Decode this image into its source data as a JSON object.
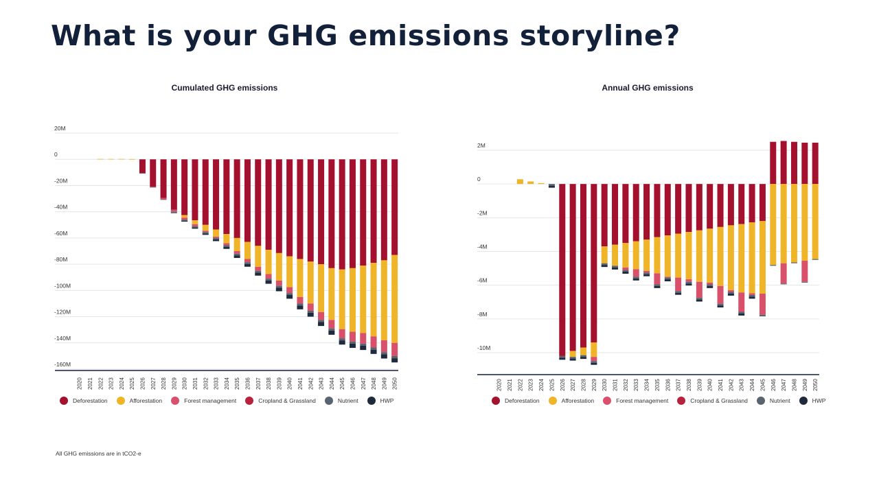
{
  "page": {
    "title": "What is your GHG emissions storyline?",
    "footnote": "All GHG emissions are in tCO2-e"
  },
  "colors": {
    "Deforestation": "#a3112e",
    "Afforestation": "#f0b429",
    "Forest management": "#d9506a",
    "Cropland & Grassland": "#b7223d",
    "Nutrient": "#5a6470",
    "HWP": "#1f2a3c"
  },
  "legend": [
    {
      "label": "Deforestation",
      "color": "#a3112e"
    },
    {
      "label": "Afforestation",
      "color": "#f0b429"
    },
    {
      "label": "Forest management",
      "color": "#d9506a"
    },
    {
      "label": "Cropland & Grassland",
      "color": "#b7223d"
    },
    {
      "label": "Nutrient",
      "color": "#5a6470"
    },
    {
      "label": "HWP",
      "color": "#1f2a3c"
    }
  ],
  "chart_data": [
    {
      "type": "bar",
      "stacked": true,
      "title": "Cumulated GHG emissions",
      "xlabel": "",
      "ylabel": "",
      "ylim": [
        -160000000,
        20000000
      ],
      "yticks": [
        20000000,
        0,
        -20000000,
        -40000000,
        -60000000,
        -80000000,
        -100000000,
        -120000000,
        -140000000,
        -160000000
      ],
      "ytick_labels": [
        "20M",
        "0",
        "-20M",
        "-40M",
        "-60M",
        "-80M",
        "-100M",
        "-120M",
        "-140M",
        "-160M"
      ],
      "grid": true,
      "legend_position": "bottom",
      "categories": [
        "2020",
        "2021",
        "2022",
        "2023",
        "2024",
        "2025",
        "2026",
        "2027",
        "2028",
        "2029",
        "2030",
        "2031",
        "2032",
        "2033",
        "2034",
        "2035",
        "2036",
        "2037",
        "2038",
        "2039",
        "2040",
        "2041",
        "2042",
        "2043",
        "2044",
        "2045",
        "2046",
        "2047",
        "2048",
        "2049",
        "2050"
      ],
      "series": [
        {
          "name": "Deforestation",
          "values": [
            0,
            0,
            0,
            0,
            0,
            0,
            -10.5,
            -20.8,
            -29.5,
            -38.5,
            -42.5,
            -46.5,
            -50,
            -53.5,
            -57,
            -60,
            -63,
            -66,
            -69,
            -71.5,
            -74,
            -76,
            -78,
            -80,
            -83,
            -84,
            -83,
            -81,
            -79,
            -77,
            -73
          ]
        },
        {
          "name": "Afforestation",
          "values": [
            0,
            0,
            0.3,
            0.3,
            0.3,
            0.2,
            0,
            0,
            0,
            0,
            -2,
            -3,
            -4.5,
            -5.5,
            -7,
            -10,
            -13,
            -16,
            -18.5,
            -21,
            -23.5,
            -29,
            -32,
            -36.5,
            -39.5,
            -45.5,
            -48.5,
            -51.5,
            -56,
            -61,
            -67
          ]
        },
        {
          "name": "Forest management",
          "values": [
            0,
            0,
            0,
            0,
            0,
            0,
            0,
            -0.3,
            -1,
            -1.5,
            -1.5,
            -1.5,
            -1,
            -1,
            -1.5,
            -2,
            -2.5,
            -3,
            -3.5,
            -4,
            -4.5,
            -5,
            -5.5,
            -6,
            -6.5,
            -7,
            -7.5,
            -8,
            -8.5,
            -9,
            -10
          ]
        },
        {
          "name": "Cropland & Grassland",
          "values": [
            0,
            0,
            0,
            0,
            0,
            0,
            0,
            0,
            0,
            0,
            0,
            0,
            0,
            0,
            0,
            0,
            0,
            0,
            0,
            0,
            0,
            0,
            0,
            0,
            0,
            0,
            0,
            0,
            0,
            0,
            0
          ]
        },
        {
          "name": "Nutrient",
          "values": [
            0,
            0,
            0,
            0,
            0,
            0,
            -0.2,
            -0.2,
            -0.4,
            -0.6,
            -0.8,
            -1,
            -1,
            -1,
            -1.2,
            -1.4,
            -1.4,
            -1.5,
            -1.5,
            -1.5,
            -1.5,
            -1.5,
            -1.5,
            -1.5,
            -1.6,
            -1.6,
            -1.6,
            -1.7,
            -1.7,
            -1.7,
            -1.7
          ]
        },
        {
          "name": "HWP",
          "values": [
            0,
            0,
            0,
            0,
            0,
            0,
            0,
            0,
            0,
            -0.4,
            -0.7,
            -0.9,
            -1.1,
            -1.4,
            -1.6,
            -1.8,
            -2,
            -2.2,
            -2.4,
            -2.6,
            -2.8,
            -2.9,
            -3,
            -3.1,
            -3.2,
            -3.2,
            -3.2,
            -3.2,
            -3.2,
            -3.2,
            -3.2
          ]
        }
      ],
      "unit_multiplier": 1000000
    },
    {
      "type": "bar",
      "stacked": true,
      "title": "Annual GHG emissions",
      "xlabel": "",
      "ylabel": "",
      "ylim": [
        -11000000,
        2500000
      ],
      "yticks": [
        2000000,
        0,
        -2000000,
        -4000000,
        -6000000,
        -8000000,
        -10000000
      ],
      "ytick_labels": [
        "2M",
        "0",
        "-2M",
        "-4M",
        "-6M",
        "-8M",
        "-10M"
      ],
      "grid": true,
      "legend_position": "bottom",
      "categories": [
        "2020",
        "2021",
        "2022",
        "2023",
        "2024",
        "2025",
        "2026",
        "2027",
        "2028",
        "2029",
        "2030",
        "2031",
        "2032",
        "2033",
        "2034",
        "2035",
        "2036",
        "2037",
        "2038",
        "2039",
        "2040",
        "2041",
        "2042",
        "2043",
        "2044",
        "2045",
        "2046",
        "2047",
        "2048",
        "2049",
        "2050"
      ],
      "series": [
        {
          "name": "Deforestation",
          "values": [
            0,
            0,
            0,
            0,
            0,
            0,
            -10.2,
            -9.9,
            -9.7,
            -9.4,
            -3.7,
            -3.6,
            -3.5,
            -3.4,
            -3.3,
            -3.15,
            -3.05,
            -2.95,
            -2.85,
            -2.75,
            -2.65,
            -2.55,
            -2.45,
            -2.38,
            -2.28,
            -2.2,
            2.5,
            2.55,
            2.5,
            2.45,
            2.45
          ]
        },
        {
          "name": "Afforestation",
          "values": [
            0,
            0,
            0.28,
            0.15,
            0.05,
            0,
            0,
            -0.35,
            -0.45,
            -0.85,
            -1,
            -1.25,
            -1.45,
            -1.65,
            -1.85,
            -2.15,
            -2.45,
            -2.6,
            -2.8,
            -3.05,
            -3.2,
            -3.5,
            -3.85,
            -4.05,
            -4.2,
            -4.3,
            -4.8,
            -4.7,
            -4.65,
            -4.55,
            -4.45
          ]
        },
        {
          "name": "Forest management",
          "values": [
            0,
            0,
            0,
            0,
            0,
            0,
            0,
            0,
            0,
            -0.25,
            0,
            0,
            -0.15,
            -0.45,
            -0.1,
            -0.65,
            -0.05,
            -0.8,
            -0.15,
            -0.95,
            -0.1,
            -1.05,
            -0.1,
            -1.15,
            -0.1,
            -1.25,
            0,
            -1.2,
            0,
            -1.25,
            0
          ]
        },
        {
          "name": "Cropland & Grassland",
          "values": [
            0,
            0,
            0,
            0,
            0,
            0,
            0,
            0,
            0,
            0,
            0,
            0,
            0,
            0,
            0,
            0,
            0,
            0,
            0,
            0,
            0,
            0,
            0,
            0,
            0,
            0,
            0,
            0,
            0,
            0,
            0
          ]
        },
        {
          "name": "Nutrient",
          "values": [
            0,
            0,
            0,
            0,
            0,
            -0.1,
            -0.1,
            -0.1,
            -0.1,
            -0.1,
            -0.1,
            -0.1,
            -0.1,
            -0.1,
            -0.1,
            -0.1,
            -0.1,
            -0.1,
            -0.1,
            -0.1,
            -0.1,
            -0.1,
            -0.1,
            -0.1,
            -0.1,
            -0.1,
            -0.05,
            -0.05,
            -0.05,
            -0.05,
            -0.05
          ]
        },
        {
          "name": "HWP",
          "values": [
            0,
            0,
            0,
            0,
            0,
            -0.12,
            -0.12,
            -0.12,
            -0.12,
            -0.12,
            -0.12,
            -0.12,
            -0.12,
            -0.12,
            -0.12,
            -0.12,
            -0.12,
            -0.12,
            -0.12,
            -0.12,
            -0.12,
            -0.12,
            -0.12,
            -0.12,
            -0.12,
            0,
            0,
            0,
            0,
            0,
            0
          ]
        }
      ],
      "unit_multiplier": 1000000
    }
  ]
}
